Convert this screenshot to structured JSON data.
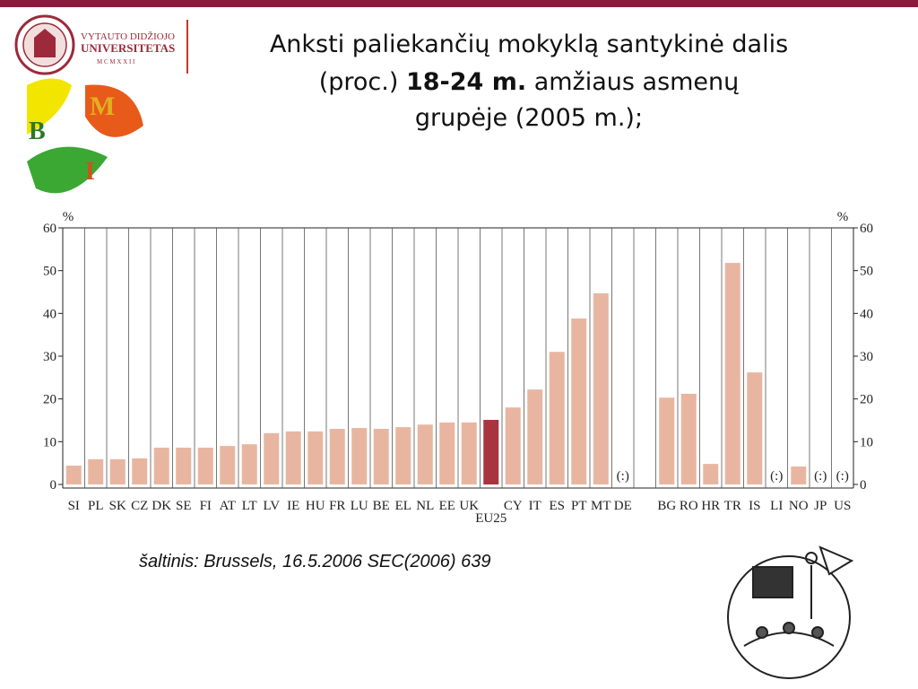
{
  "header": {
    "logo": {
      "line1": "VYTAUTO DIDŽIOJO",
      "line2": "UNIVERSITETAS",
      "line3": "M C M X X I I"
    },
    "badge": {
      "letter1": "B",
      "letter2": "M",
      "letter3": "I"
    },
    "title": {
      "line1": "Anksti paliekančių mokyklą santykinė dalis",
      "line2_before": "(proc.) ",
      "line2_bold": "18-24 m.",
      "line2_after": " amžiaus asmenų",
      "line3": "grupėje (2005 m.);"
    }
  },
  "chart_data": {
    "type": "bar",
    "y_label": "%",
    "categories": [
      "SI",
      "PL",
      "SK",
      "CZ",
      "DK",
      "SE",
      "FI",
      "AT",
      "LT",
      "LV",
      "IE",
      "HU",
      "FR",
      "LU",
      "BE",
      "EL",
      "NL",
      "EE",
      "UK",
      "EU25",
      "CY",
      "IT",
      "ES",
      "PT",
      "MT",
      "DE",
      null,
      "BG",
      "RO",
      "HR",
      "TR",
      "IS",
      "LI",
      "NO",
      "JP",
      "US"
    ],
    "values": [
      4.4,
      5.9,
      5.9,
      6.1,
      8.6,
      8.6,
      8.6,
      9.0,
      9.4,
      12.0,
      12.4,
      12.4,
      13.0,
      13.2,
      13.0,
      13.4,
      14.0,
      14.5,
      14.5,
      15.1,
      18.0,
      22.2,
      31.0,
      38.8,
      44.7,
      null,
      null,
      20.3,
      21.2,
      4.8,
      51.8,
      26.2,
      null,
      4.2,
      null,
      null
    ],
    "value_labels": [
      null,
      null,
      null,
      null,
      null,
      null,
      null,
      null,
      null,
      null,
      null,
      null,
      null,
      null,
      null,
      null,
      null,
      null,
      null,
      null,
      null,
      null,
      null,
      null,
      null,
      "(:)",
      null,
      null,
      null,
      null,
      null,
      null,
      "(:)",
      null,
      "(:)",
      "(:)"
    ],
    "color": "#e8b6a0",
    "highlight": {
      "category": "EU25",
      "color": "#a8343f"
    },
    "ylim": [
      0,
      60
    ],
    "yticks": [
      0,
      10,
      20,
      30,
      40,
      50,
      60
    ],
    "right_axis": true,
    "grid": "vertical"
  },
  "source": "šaltinis: Brussels, 16.5.2006 SEC(2006) 639"
}
